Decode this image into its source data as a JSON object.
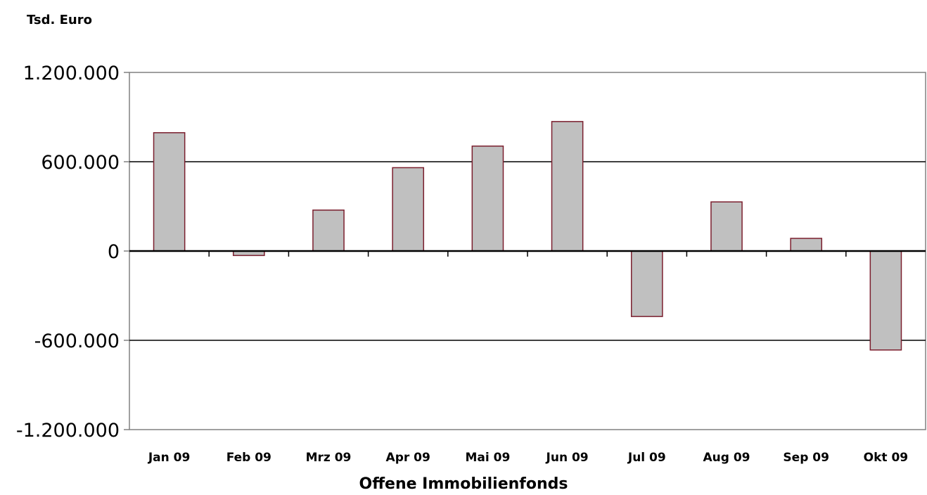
{
  "chart_data": {
    "type": "bar",
    "unit_label": "Tsd. Euro",
    "xlabel": "Offene Immobilienfonds",
    "categories": [
      "Jan 09",
      "Feb 09",
      "Mrz 09",
      "Apr 09",
      "Mai 09",
      "Jun 09",
      "Jul 09",
      "Aug 09",
      "Sep 09",
      "Okt 09"
    ],
    "values": [
      795000,
      -30000,
      275000,
      560000,
      705000,
      870000,
      -440000,
      330000,
      85000,
      -665000
    ],
    "ylim": [
      -1200000,
      1200000
    ],
    "yticks": [
      1200000,
      600000,
      0,
      -600000,
      -1200000
    ],
    "ytick_labels": [
      "1.200.000",
      "600.000",
      "0",
      "-600.000",
      "-1.200.000"
    ],
    "grid": true,
    "bar_color": "#c0c0c0",
    "bar_edge_color": "#7b1f2e"
  }
}
